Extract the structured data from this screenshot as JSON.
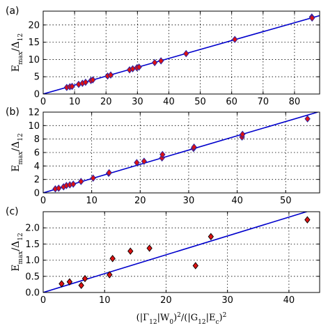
{
  "chart_data": [
    {
      "type": "scatter",
      "panel_label": "(a)",
      "ylabel": "E_max/Δ_12",
      "xlim": [
        0,
        88
      ],
      "ylim": [
        0,
        24
      ],
      "xticks": [
        0,
        10,
        20,
        30,
        40,
        50,
        60,
        70,
        80
      ],
      "yticks": [
        0,
        5,
        10,
        15,
        20
      ],
      "grid": true,
      "line": {
        "slope": 0.258,
        "intercept": 0,
        "color": "#0000cc"
      },
      "series": [
        {
          "marker_color": "#dd1111",
          "edge_color": "#2222aa",
          "points": [
            [
              7.5,
              1.9
            ],
            [
              8.5,
              2.1
            ],
            [
              9.2,
              2.2
            ],
            [
              11.3,
              2.8
            ],
            [
              12.5,
              3.1
            ],
            [
              13.5,
              3.4
            ],
            [
              15.2,
              3.9
            ],
            [
              15.8,
              4.1
            ],
            [
              20.5,
              5.2
            ],
            [
              21.5,
              5.5
            ],
            [
              27.5,
              7.0
            ],
            [
              28.5,
              7.3
            ],
            [
              29.8,
              7.6
            ],
            [
              30.5,
              7.8
            ],
            [
              35.5,
              9.1
            ],
            [
              37.5,
              9.6
            ],
            [
              45.5,
              11.7
            ],
            [
              61.0,
              15.8
            ],
            [
              85.5,
              22.3
            ],
            [
              85.6,
              22.0
            ]
          ]
        }
      ]
    },
    {
      "type": "scatter",
      "panel_label": "(b)",
      "ylabel": "E_max/Δ_12",
      "xlim": [
        0,
        57
      ],
      "ylim": [
        0,
        12
      ],
      "xticks": [
        0,
        10,
        20,
        30,
        40,
        50
      ],
      "yticks": [
        0,
        2,
        4,
        6,
        8,
        10,
        12
      ],
      "grid": true,
      "line": {
        "slope": 0.212,
        "intercept": 0,
        "color": "#0000cc"
      },
      "series": [
        {
          "marker_color": "#dd1111",
          "edge_color": "#2222aa",
          "points": [
            [
              2.5,
              0.6
            ],
            [
              3.2,
              0.7
            ],
            [
              4.2,
              0.9
            ],
            [
              4.8,
              1.1
            ],
            [
              5.5,
              1.2
            ],
            [
              6.2,
              1.3
            ],
            [
              7.8,
              1.7
            ],
            [
              10.3,
              2.2
            ],
            [
              13.5,
              2.9
            ],
            [
              13.6,
              3.0
            ],
            [
              19.3,
              4.5
            ],
            [
              20.8,
              4.7
            ],
            [
              24.5,
              5.2
            ],
            [
              24.6,
              5.7
            ],
            [
              31.0,
              6.6
            ],
            [
              31.1,
              6.8
            ],
            [
              41.0,
              8.3
            ],
            [
              41.1,
              8.7
            ],
            [
              54.5,
              11.0
            ]
          ]
        }
      ]
    },
    {
      "type": "scatter",
      "panel_label": "(c)",
      "ylabel": "E_max/Δ_12",
      "xlabel": "(|Γ_12|W_0)^2/(|G_12|E_c)^2",
      "xlim": [
        0,
        45
      ],
      "ylim": [
        0,
        2.5
      ],
      "xticks": [
        0,
        10,
        20,
        30,
        40
      ],
      "yticks": [
        0.0,
        0.5,
        1.0,
        1.5,
        2.0
      ],
      "ytick_labels": [
        "0.0",
        "0.5",
        "1.0",
        "1.5",
        "2.0"
      ],
      "grid": true,
      "line": {
        "slope": 0.0583,
        "intercept": 0,
        "color": "#0000cc"
      },
      "series": [
        {
          "marker_color": "#dd1111",
          "edge_color": "#000000",
          "points": [
            [
              3.0,
              0.27
            ],
            [
              4.3,
              0.33
            ],
            [
              6.2,
              0.22
            ],
            [
              6.8,
              0.43
            ],
            [
              10.8,
              0.55
            ],
            [
              11.3,
              1.05
            ],
            [
              14.2,
              1.28
            ],
            [
              17.3,
              1.37
            ],
            [
              24.8,
              0.83
            ],
            [
              27.3,
              1.73
            ],
            [
              43.0,
              2.25
            ]
          ]
        }
      ]
    }
  ]
}
